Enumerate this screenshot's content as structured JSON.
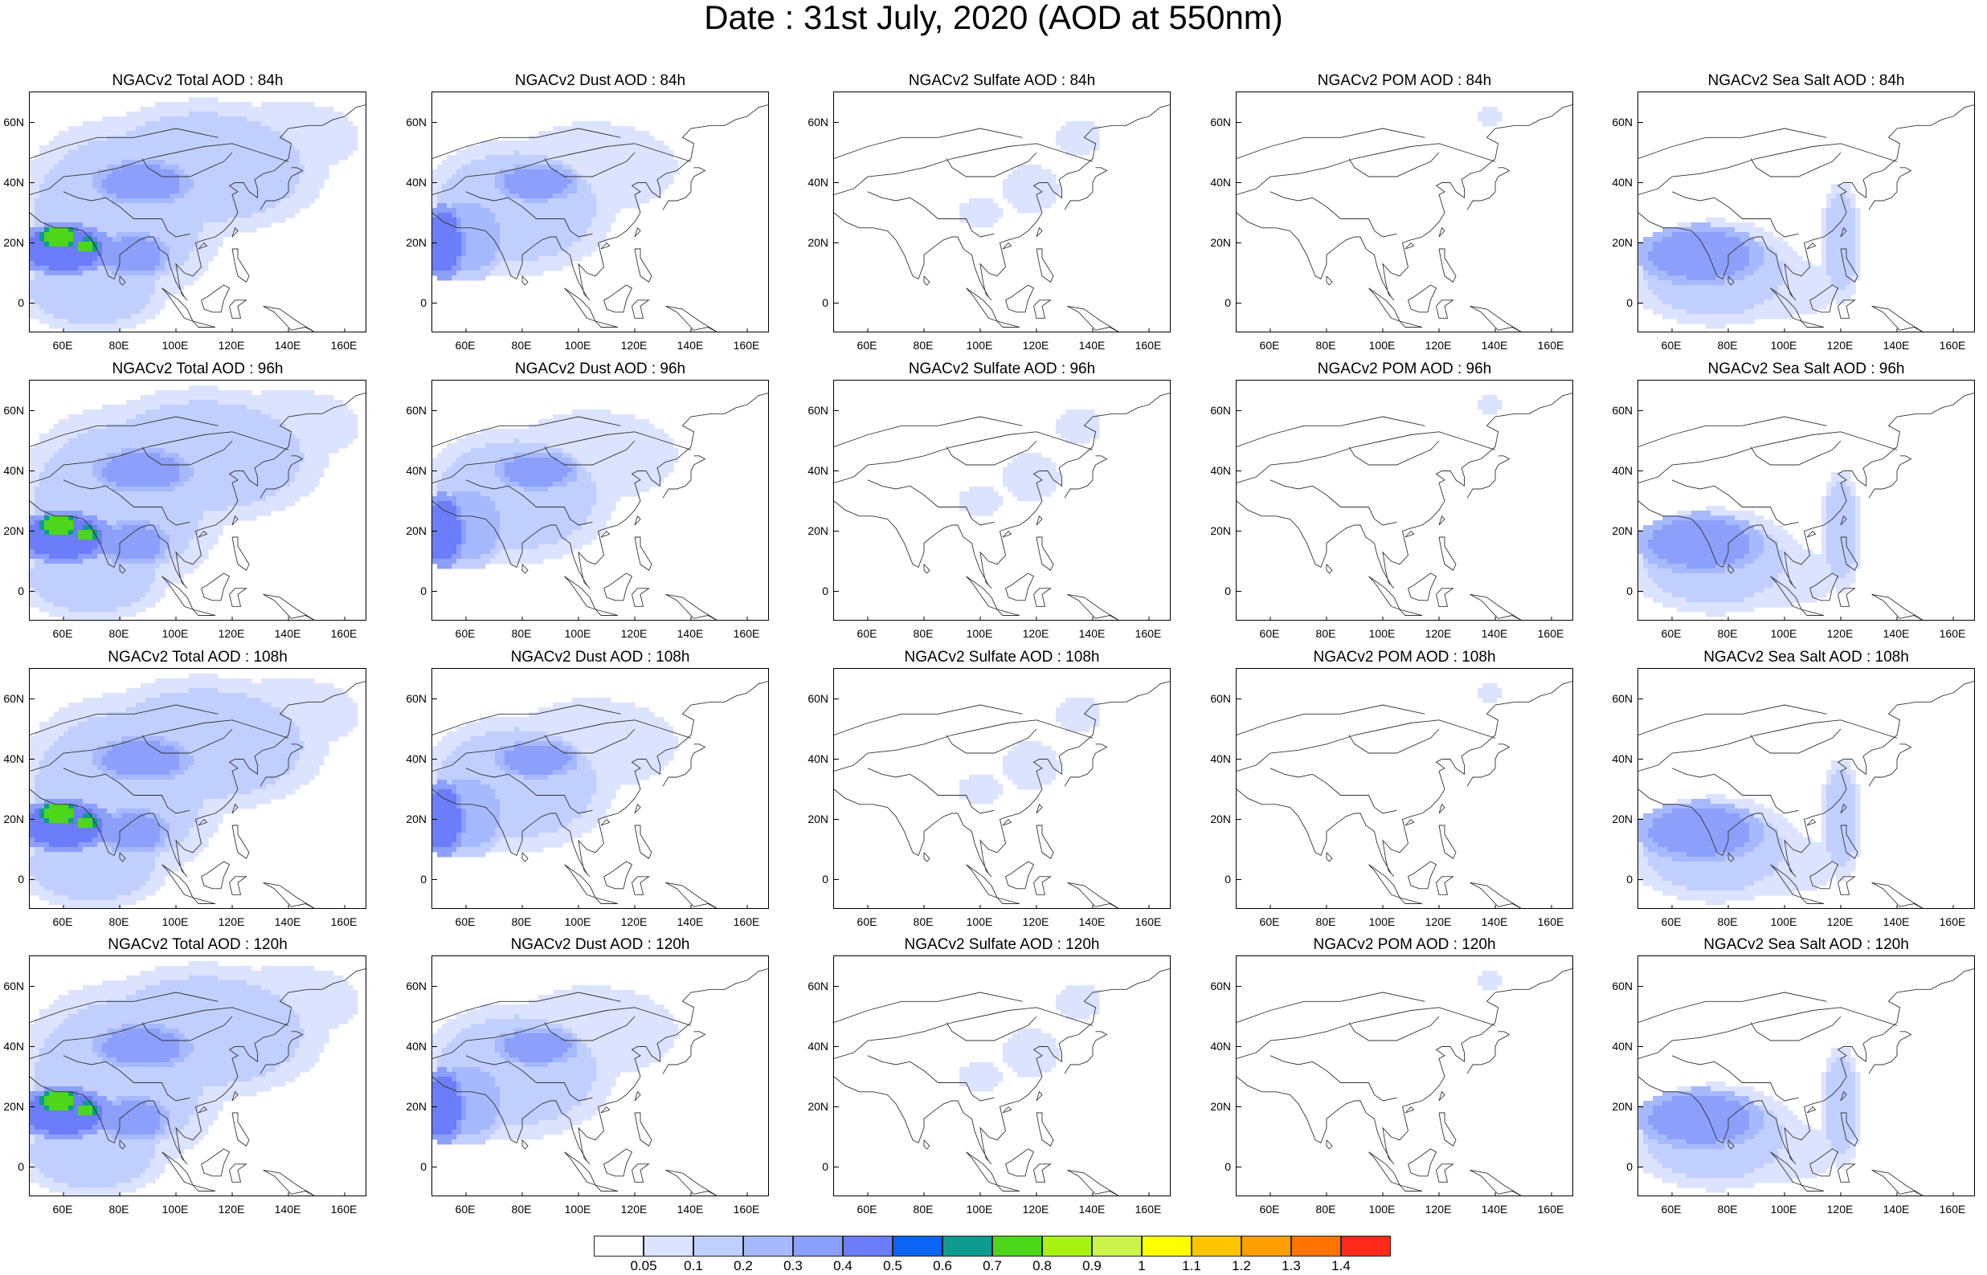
{
  "title": "Date : 31st July, 2020 (AOD at 550nm)",
  "map_axes": {
    "lat_labels": [
      "60N",
      "40N",
      "20N",
      "0"
    ],
    "lat_values": [
      60,
      40,
      20,
      0
    ],
    "lon_labels": [
      "60E",
      "80E",
      "100E",
      "120E",
      "140E",
      "160E"
    ],
    "lon_values": [
      60,
      80,
      100,
      120,
      140,
      160
    ],
    "lon_range": [
      48,
      168
    ],
    "lat_range": [
      -10,
      70
    ]
  },
  "panels": [
    {
      "title": "NGACv2 Total AOD : 84h",
      "species": "total",
      "hour": 84
    },
    {
      "title": "NGACv2 Dust AOD : 84h",
      "species": "dust",
      "hour": 84
    },
    {
      "title": "NGACv2 Sulfate AOD : 84h",
      "species": "sulfate",
      "hour": 84
    },
    {
      "title": "NGACv2 POM AOD : 84h",
      "species": "pom",
      "hour": 84
    },
    {
      "title": "NGACv2 Sea Salt AOD : 84h",
      "species": "seasalt",
      "hour": 84
    },
    {
      "title": "NGACv2 Total AOD : 96h",
      "species": "total",
      "hour": 96
    },
    {
      "title": "NGACv2 Dust AOD : 96h",
      "species": "dust",
      "hour": 96
    },
    {
      "title": "NGACv2 Sulfate AOD : 96h",
      "species": "sulfate",
      "hour": 96
    },
    {
      "title": "NGACv2 POM AOD : 96h",
      "species": "pom",
      "hour": 96
    },
    {
      "title": "NGACv2 Sea Salt AOD : 96h",
      "species": "seasalt",
      "hour": 96
    },
    {
      "title": "NGACv2 Total AOD : 108h",
      "species": "total",
      "hour": 108
    },
    {
      "title": "NGACv2 Dust AOD : 108h",
      "species": "dust",
      "hour": 108
    },
    {
      "title": "NGACv2 Sulfate AOD : 108h",
      "species": "sulfate",
      "hour": 108
    },
    {
      "title": "NGACv2 POM AOD : 108h",
      "species": "pom",
      "hour": 108
    },
    {
      "title": "NGACv2 Sea Salt AOD : 108h",
      "species": "seasalt",
      "hour": 108
    },
    {
      "title": "NGACv2 Total AOD : 120h",
      "species": "total",
      "hour": 120
    },
    {
      "title": "NGACv2 Dust AOD : 120h",
      "species": "dust",
      "hour": 120
    },
    {
      "title": "NGACv2 Sulfate AOD : 120h",
      "species": "sulfate",
      "hour": 120
    },
    {
      "title": "NGACv2 POM AOD : 120h",
      "species": "pom",
      "hour": 120
    },
    {
      "title": "NGACv2 Sea Salt  AOD : 120h",
      "species": "seasalt",
      "hour": 120
    }
  ],
  "colorbar": {
    "labels": [
      "0.05",
      "0.1",
      "0.2",
      "0.3",
      "0.4",
      "0.5",
      "0.6",
      "0.7",
      "0.8",
      "0.9",
      "1",
      "1.1",
      "1.2",
      "1.3",
      "1.4"
    ],
    "colors": [
      "#ffffff",
      "#dbe3ff",
      "#c1cffe",
      "#a6b9fd",
      "#8b9ffb",
      "#6b7df8",
      "#0b64f3",
      "#0f9b8f",
      "#4ed61a",
      "#a8f212",
      "#cbf34a",
      "#ffff00",
      "#ffc400",
      "#ff9e00",
      "#ff7400",
      "#ff2a1c"
    ]
  },
  "plumes": {
    "total": [
      {
        "lon": 60,
        "lat": 18,
        "rx": 14,
        "ry": 7,
        "level": 5
      },
      {
        "lon": 58,
        "lat": 22,
        "rx": 5,
        "ry": 3,
        "level": 8
      },
      {
        "lon": 68,
        "lat": 19,
        "rx": 3,
        "ry": 2,
        "level": 8
      },
      {
        "lon": 85,
        "lat": 16,
        "rx": 10,
        "ry": 6,
        "level": 4
      },
      {
        "lon": 88,
        "lat": 40,
        "rx": 14,
        "ry": 6,
        "level": 4
      },
      {
        "lon": 80,
        "lat": 30,
        "rx": 30,
        "ry": 25,
        "level": 2
      },
      {
        "lon": 110,
        "lat": 45,
        "rx": 35,
        "ry": 18,
        "level": 2
      },
      {
        "lon": 70,
        "lat": 5,
        "rx": 22,
        "ry": 12,
        "level": 2
      },
      {
        "lon": 140,
        "lat": 55,
        "rx": 25,
        "ry": 12,
        "level": 1
      }
    ],
    "dust": [
      {
        "lon": 52,
        "lat": 20,
        "rx": 6,
        "ry": 10,
        "level": 5
      },
      {
        "lon": 85,
        "lat": 40,
        "rx": 12,
        "ry": 5,
        "level": 4
      },
      {
        "lon": 78,
        "lat": 32,
        "rx": 28,
        "ry": 18,
        "level": 2
      },
      {
        "lon": 105,
        "lat": 45,
        "rx": 30,
        "ry": 15,
        "level": 1
      },
      {
        "lon": 60,
        "lat": 22,
        "rx": 12,
        "ry": 12,
        "level": 3
      }
    ],
    "sulfate": [
      {
        "lon": 118,
        "lat": 38,
        "rx": 10,
        "ry": 8,
        "level": 1
      },
      {
        "lon": 100,
        "lat": 30,
        "rx": 8,
        "ry": 5,
        "level": 1
      },
      {
        "lon": 135,
        "lat": 55,
        "rx": 8,
        "ry": 6,
        "level": 1
      }
    ],
    "pom": [
      {
        "lon": 138,
        "lat": 62,
        "rx": 4,
        "ry": 3,
        "level": 1
      }
    ],
    "seasalt": [
      {
        "lon": 70,
        "lat": 16,
        "rx": 18,
        "ry": 8,
        "level": 4
      },
      {
        "lon": 75,
        "lat": 10,
        "rx": 25,
        "ry": 14,
        "level": 2
      },
      {
        "lon": 120,
        "lat": 20,
        "rx": 6,
        "ry": 16,
        "level": 2
      },
      {
        "lon": 95,
        "lat": 5,
        "rx": 25,
        "ry": 10,
        "level": 1
      }
    ]
  }
}
